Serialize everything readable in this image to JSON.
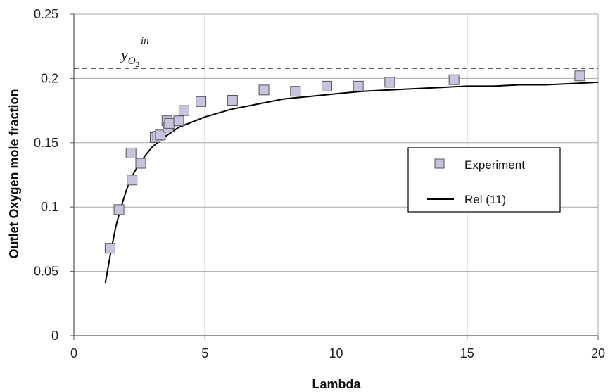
{
  "chart_data": {
    "type": "scatter",
    "xlabel": "Lambda",
    "ylabel": "Outlet Oxygen mole fraction",
    "xlim": [
      0,
      20
    ],
    "ylim": [
      0,
      0.25
    ],
    "x_ticks": [
      "0",
      "5",
      "10",
      "15",
      "20"
    ],
    "y_ticks": [
      "0",
      "0.05",
      "0.1",
      "0.15",
      "0.2",
      "0.25"
    ],
    "grid": true,
    "legend_position": "right",
    "series": [
      {
        "name": "Experiment",
        "kind": "markers",
        "marker": "square",
        "color": "#c9c3e0",
        "points": [
          [
            1.38,
            0.068
          ],
          [
            1.72,
            0.098
          ],
          [
            2.18,
            0.142
          ],
          [
            2.22,
            0.121
          ],
          [
            2.55,
            0.134
          ],
          [
            3.1,
            0.154
          ],
          [
            3.2,
            0.155
          ],
          [
            3.3,
            0.156
          ],
          [
            3.55,
            0.167
          ],
          [
            3.6,
            0.162
          ],
          [
            3.65,
            0.165
          ],
          [
            4.0,
            0.167
          ],
          [
            4.2,
            0.175
          ],
          [
            4.85,
            0.182
          ],
          [
            6.05,
            0.183
          ],
          [
            7.25,
            0.191
          ],
          [
            8.45,
            0.19
          ],
          [
            9.65,
            0.194
          ],
          [
            10.85,
            0.194
          ],
          [
            12.05,
            0.197
          ],
          [
            14.5,
            0.199
          ],
          [
            19.3,
            0.202
          ]
        ]
      },
      {
        "name": "Rel (11)",
        "kind": "line",
        "color": "#000000",
        "points": [
          [
            1.2,
            0.041
          ],
          [
            1.4,
            0.064
          ],
          [
            1.6,
            0.085
          ],
          [
            1.8,
            0.1
          ],
          [
            2.0,
            0.113
          ],
          [
            2.25,
            0.125
          ],
          [
            2.5,
            0.134
          ],
          [
            2.8,
            0.142
          ],
          [
            3.0,
            0.147
          ],
          [
            3.5,
            0.155
          ],
          [
            4.0,
            0.162
          ],
          [
            4.5,
            0.166
          ],
          [
            5.0,
            0.17
          ],
          [
            6.0,
            0.176
          ],
          [
            7.0,
            0.18
          ],
          [
            8.0,
            0.184
          ],
          [
            9.0,
            0.186
          ],
          [
            10.0,
            0.188
          ],
          [
            11.0,
            0.19
          ],
          [
            12.0,
            0.191
          ],
          [
            13.0,
            0.192
          ],
          [
            14.0,
            0.193
          ],
          [
            15.0,
            0.194
          ],
          [
            16.0,
            0.194
          ],
          [
            17.0,
            0.195
          ],
          [
            18.0,
            0.195
          ],
          [
            19.0,
            0.196
          ],
          [
            20.0,
            0.197
          ]
        ]
      }
    ],
    "reference_line": {
      "y": 0.208,
      "style": "dashed",
      "label_main": "y",
      "label_sub": "O",
      "label_subsub": "2",
      "label_sup": "in"
    }
  }
}
